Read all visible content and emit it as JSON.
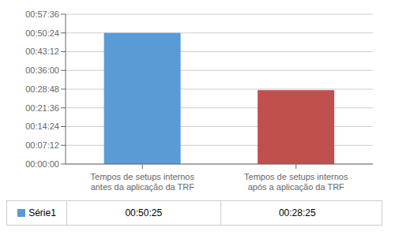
{
  "chart_data": {
    "type": "bar",
    "categories": [
      "Tempos de setups internos\nantes da aplicação da TRF",
      "Tempos de setups internos\napós a aplicação da TRF"
    ],
    "series": [
      {
        "name": "Série1",
        "colors": [
          "#5B9BD5",
          "#C0504D"
        ],
        "values": [
          3025,
          1705
        ],
        "value_labels": [
          "00:50:25",
          "00:28:25"
        ]
      }
    ],
    "ylim": [
      0,
      3456
    ],
    "yticks": [
      {
        "value": 0,
        "label": "00:00:00"
      },
      {
        "value": 432,
        "label": "00:07:12"
      },
      {
        "value": 864,
        "label": "00:14:24"
      },
      {
        "value": 1296,
        "label": "00:21:36"
      },
      {
        "value": 1728,
        "label": "00:28:48"
      },
      {
        "value": 2160,
        "label": "00:36:00"
      },
      {
        "value": 2592,
        "label": "00:43:12"
      },
      {
        "value": 3024,
        "label": "00:50:24"
      },
      {
        "value": 3456,
        "label": "00:57:36"
      }
    ],
    "grid": true
  }
}
